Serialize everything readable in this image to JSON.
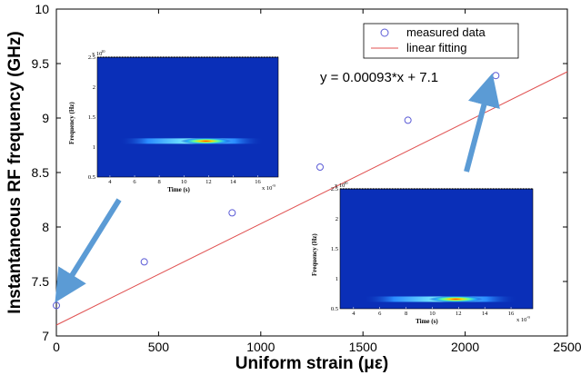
{
  "chart_data": {
    "type": "scatter",
    "xlabel": "Uniform strain (με)",
    "ylabel": "Instantaneous RF frequency (GHz)",
    "xlim": [
      0,
      2500
    ],
    "ylim": [
      7,
      10
    ],
    "x_ticks": [
      "0",
      "500",
      "1000",
      "1500",
      "2000",
      "2500"
    ],
    "y_ticks": [
      "7",
      "7.5",
      "8",
      "8.5",
      "9",
      "9.5",
      "10"
    ],
    "grid": false,
    "legend_position": "top-right",
    "series": [
      {
        "name": "measured data",
        "kind": "scatter",
        "color": "#5b5bd6",
        "x": [
          0,
          430,
          860,
          1290,
          1720,
          2150
        ],
        "y": [
          7.28,
          7.68,
          8.13,
          8.55,
          8.98,
          9.39
        ]
      },
      {
        "name": "linear fitting",
        "kind": "line",
        "color": "#e05050",
        "slope": 0.00093,
        "intercept": 7.1
      }
    ],
    "annotation": "y = 0.00093*x + 7.1",
    "insets": [
      {
        "ylabel": "Frequency (Hz)",
        "xlabel": "Time (s)",
        "y_exponent": "x 10",
        "y_exponent_power": "10",
        "x_exponent": "x 10",
        "x_exponent_power": "-9",
        "x_ticks": [
          "4",
          "6",
          "8",
          "10",
          "12",
          "14",
          "16"
        ],
        "y_ticks": [
          "0.5",
          "1",
          "1.5",
          "2",
          "2.5"
        ],
        "band_level": 0.7
      },
      {
        "ylabel": "Frequency (Hz)",
        "xlabel": "Time (s)",
        "y_exponent": "x 10",
        "y_exponent_power": "10",
        "x_exponent": "x 10",
        "x_exponent_power": "-9",
        "x_ticks": [
          "4",
          "6",
          "8",
          "10",
          "12",
          "14",
          "16"
        ],
        "y_ticks": [
          "0.5",
          "1",
          "1.5",
          "2",
          "2.5"
        ],
        "band_level": 0.92
      }
    ]
  }
}
